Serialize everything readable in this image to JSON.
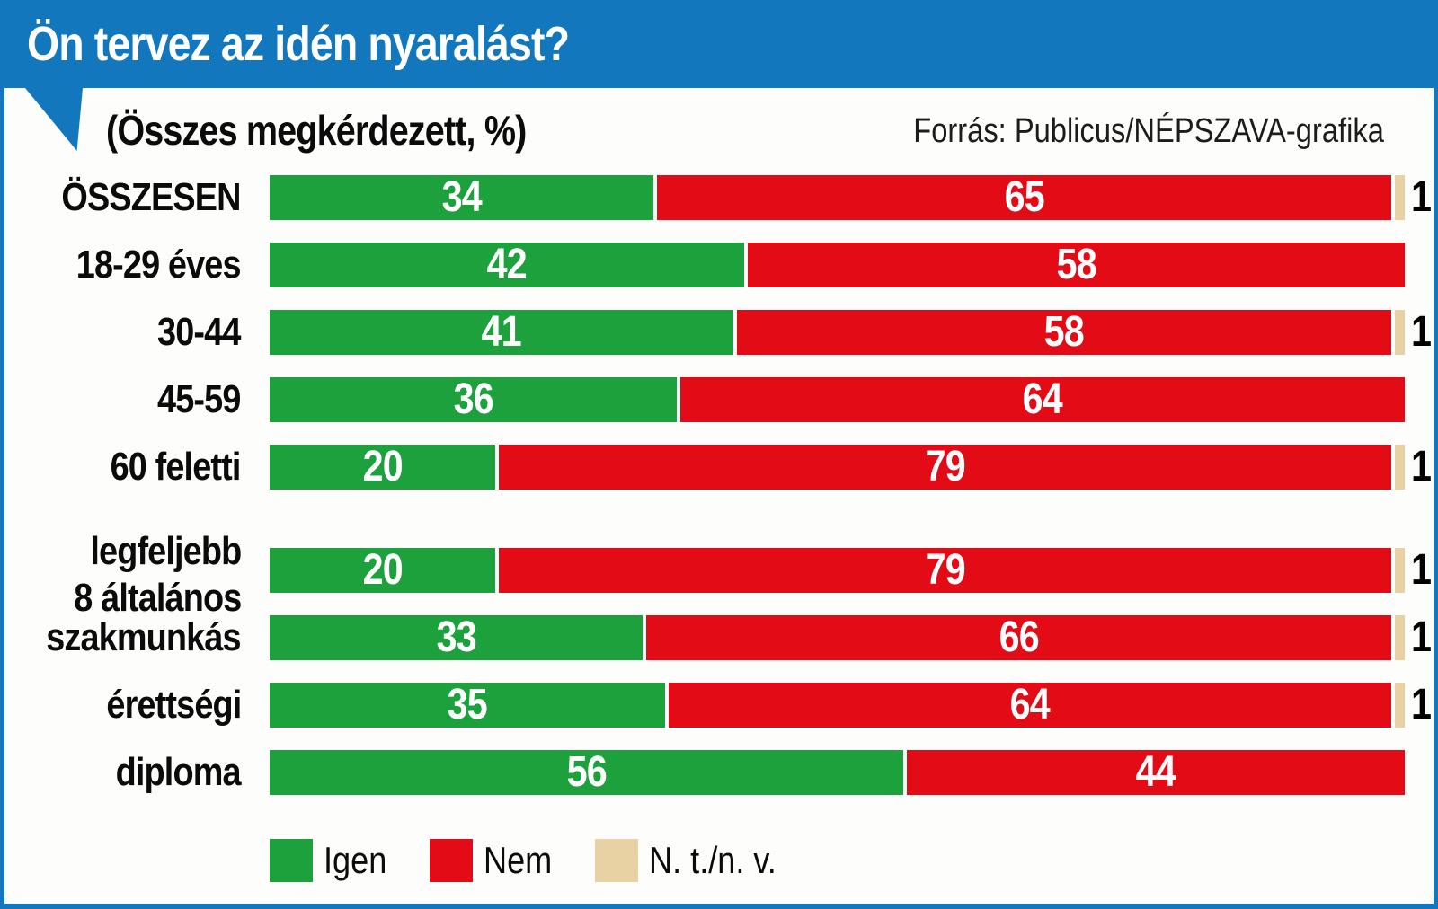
{
  "header": {
    "title": "Ön tervez az idén nyaralást?"
  },
  "subtitle": "(Összes megkérdezett, %)",
  "source": "Forrás: Publicus/NÉPSZAVA-grafika",
  "colors": {
    "header_blue": "#1377BD",
    "igen_green": "#1DA13C",
    "nem_red": "#E30B16",
    "nt_beige": "#E8D2A4",
    "value_text": "#FFFFFF",
    "nt_value_text": "#000000",
    "background": "#FDFDFB"
  },
  "chart_data": {
    "type": "bar",
    "orientation": "horizontal",
    "stacked": true,
    "unit": "%",
    "title": "Ön tervez az idén nyaralást?",
    "subtitle": "(Összes megkérdezett, %)",
    "xlim": [
      0,
      100
    ],
    "grid": false,
    "legend_position": "bottom",
    "group_break_after_index": 4,
    "categories": [
      "ÖSSZESEN",
      "18-29 éves",
      "30-44",
      "45-59",
      "60 feletti",
      "legfeljebb\n8 általános",
      "szakmunkás",
      "érettségi",
      "diploma"
    ],
    "series": [
      {
        "name": "Igen",
        "color": "#1DA13C",
        "values": [
          34,
          42,
          41,
          36,
          20,
          20,
          33,
          35,
          56
        ]
      },
      {
        "name": "Nem",
        "color": "#E30B16",
        "values": [
          65,
          58,
          58,
          64,
          79,
          79,
          66,
          64,
          44
        ]
      },
      {
        "name": "N. t./n. v.",
        "color": "#E8D2A4",
        "values": [
          1,
          0,
          1,
          0,
          1,
          1,
          1,
          1,
          0
        ]
      }
    ]
  },
  "legend": {
    "items": [
      {
        "label": "Igen",
        "color": "#1DA13C"
      },
      {
        "label": "Nem",
        "color": "#E30B16"
      },
      {
        "label": "N. t./n. v.",
        "color": "#E8D2A4"
      }
    ]
  }
}
